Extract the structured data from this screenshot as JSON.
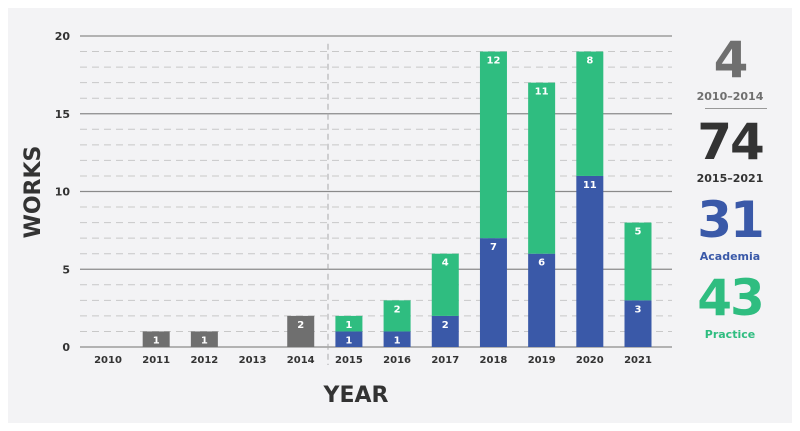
{
  "chart_data": {
    "type": "bar",
    "stacked": true,
    "xlabel": "YEAR",
    "ylabel": "WORKS",
    "ylim": [
      0,
      20
    ],
    "yticks": [
      0,
      5,
      10,
      15,
      20
    ],
    "grid": true,
    "categories": [
      "2010",
      "2011",
      "2012",
      "2013",
      "2014",
      "2015",
      "2016",
      "2017",
      "2018",
      "2019",
      "2020",
      "2021"
    ],
    "series": [
      {
        "color": "#6f6f6f",
        "values": [
          0,
          1,
          1,
          0,
          2,
          0,
          0,
          0,
          0,
          0,
          0,
          0
        ]
      },
      {
        "color": "#3a59a8",
        "values": [
          0,
          0,
          0,
          0,
          0,
          1,
          1,
          2,
          7,
          6,
          11,
          3
        ]
      },
      {
        "color": "#2fbd80",
        "values": [
          0,
          0,
          0,
          0,
          0,
          1,
          2,
          4,
          12,
          11,
          8,
          5
        ]
      }
    ]
  },
  "summary": [
    {
      "value": "4",
      "label": "2010–2014",
      "color": "#6f6f6f"
    },
    {
      "value": "74",
      "label": "2015–2021",
      "color": "#333333"
    },
    {
      "value": "31",
      "label": "Academia",
      "color": "#3a59a8"
    },
    {
      "value": "43",
      "label": "Practice",
      "color": "#2fbd80"
    }
  ]
}
